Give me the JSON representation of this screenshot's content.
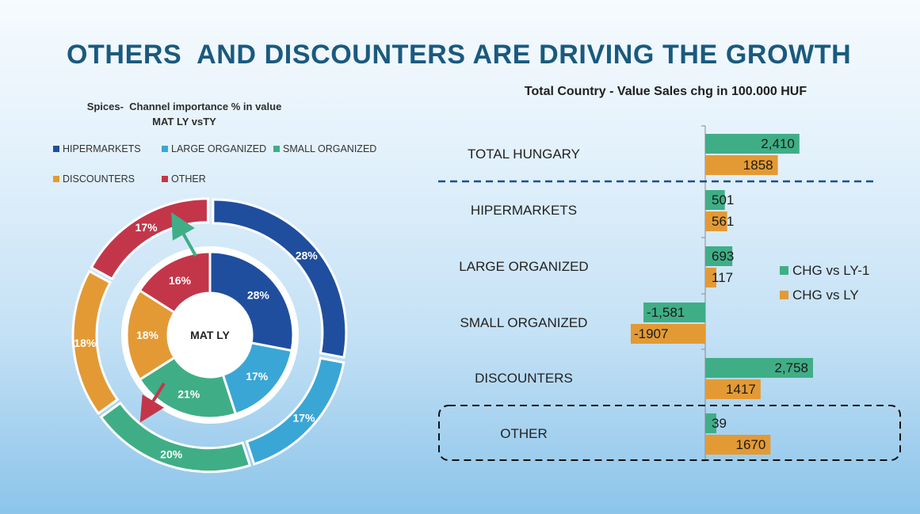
{
  "title": "OTHERS  AND DISCOUNTERS ARE DRIVING THE GROWTH",
  "colors": {
    "hipermarkets": "#1f4e9e",
    "large_organized": "#3aa6d6",
    "small_organized": "#3fae86",
    "discounters": "#e39a35",
    "other": "#c3364a",
    "title": "#1a5a7e",
    "chg_ly1": "#3fae86",
    "chg_ly": "#e39a35"
  },
  "chart_data": [
    {
      "type": "pie",
      "subtype": "donut-two-rings",
      "title_line1": "Spices-  Channel importance % in value",
      "title_line2": "MAT LY vsTY",
      "center_label": "MAT LY",
      "legend": [
        "HIPERMARKETS",
        "LARGE ORGANIZED",
        "SMALL ORGANIZED",
        "DISCOUNTERS",
        "OTHER"
      ],
      "legend_placement": "top",
      "rings": [
        {
          "ring": "outer",
          "values": [
            28,
            17,
            20,
            18,
            17
          ],
          "labels": [
            "28%",
            "17%",
            "20%",
            "18%",
            "17%"
          ]
        },
        {
          "ring": "inner",
          "values": [
            28,
            17,
            21,
            18,
            16
          ],
          "labels": [
            "28%",
            "17%",
            "21%",
            "18%",
            "16%"
          ]
        }
      ],
      "arrows": [
        {
          "category": "OTHER",
          "direction": "up"
        },
        {
          "category": "SMALL ORGANIZED",
          "direction": "down"
        }
      ]
    },
    {
      "type": "bar",
      "orientation": "horizontal",
      "title": "Total Country - Value Sales chg in 100.000 HUF",
      "categories": [
        "TOTAL HUNGARY",
        "HIPERMARKETS",
        "LARGE ORGANIZED",
        "SMALL ORGANIZED",
        "DISCOUNTERS",
        "OTHER"
      ],
      "series": [
        {
          "name": "CHG vs LY-1",
          "values": [
            2410,
            501,
            693,
            -1581,
            2758,
            39
          ],
          "labels": [
            "2,410",
            "501",
            "693",
            "-1,581",
            "2,758",
            "39"
          ]
        },
        {
          "name": "CHG vs LY",
          "values": [
            1858,
            561,
            117,
            -1907,
            1417,
            1670
          ],
          "labels": [
            "1858",
            "561",
            "117",
            "-1907",
            "1417",
            "1670"
          ]
        }
      ],
      "legend_placement": "right",
      "highlighted_category": "OTHER"
    }
  ]
}
